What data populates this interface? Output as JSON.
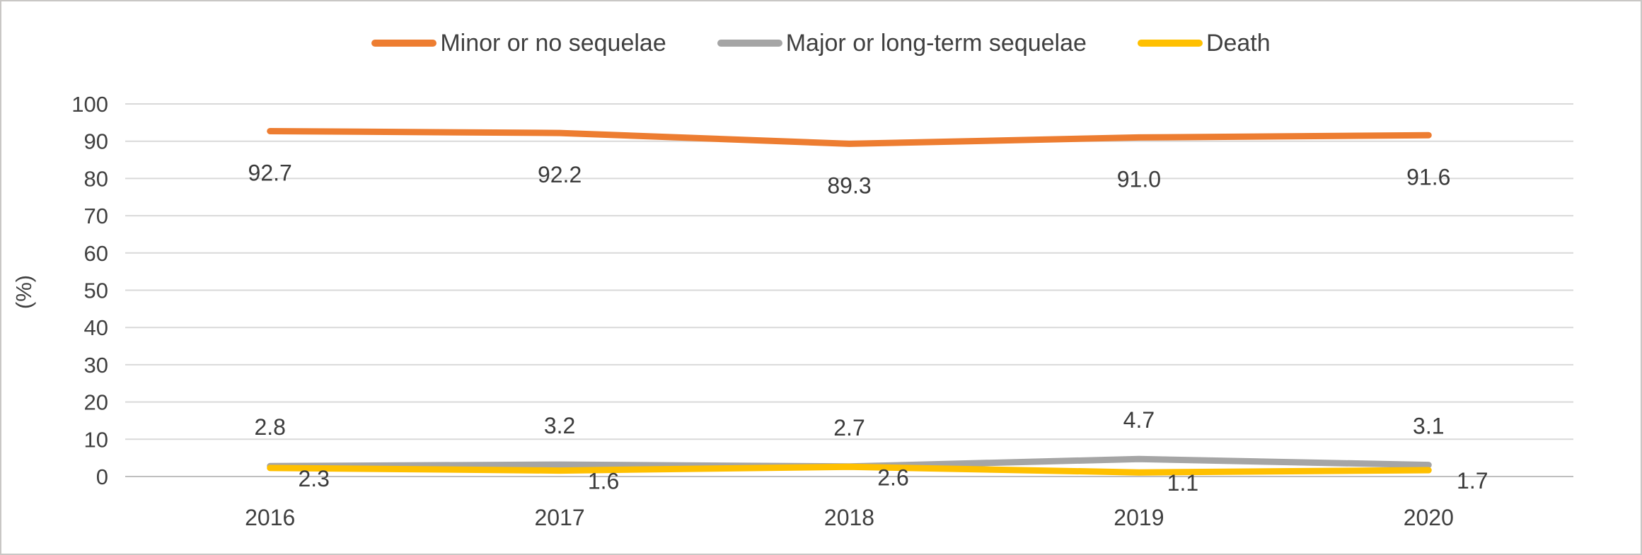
{
  "chart_data": {
    "type": "line",
    "title": "",
    "xlabel": "",
    "ylabel": "(%)",
    "ylim": [
      0,
      100
    ],
    "ytick_step": 10,
    "grid": true,
    "legend_position": "top",
    "categories": [
      "2016",
      "2017",
      "2018",
      "2019",
      "2020"
    ],
    "series": [
      {
        "name": "Minor or no sequelae",
        "color": "#ED7D31",
        "values": [
          92.7,
          92.2,
          89.3,
          91.0,
          91.6
        ]
      },
      {
        "name": "Major or long-term sequelae",
        "color": "#A5A5A5",
        "values": [
          2.8,
          3.2,
          2.7,
          4.7,
          3.1
        ]
      },
      {
        "name": "Death",
        "color": "#FFC000",
        "values": [
          2.3,
          1.6,
          2.6,
          1.1,
          1.7
        ]
      }
    ]
  },
  "colors": {
    "gridline": "#D9D9D9",
    "zero_line": "#BFBFBF",
    "axis_text": "#404040",
    "data_label_text": "#3B3B3B",
    "frame_border": "#C9C7C5"
  }
}
